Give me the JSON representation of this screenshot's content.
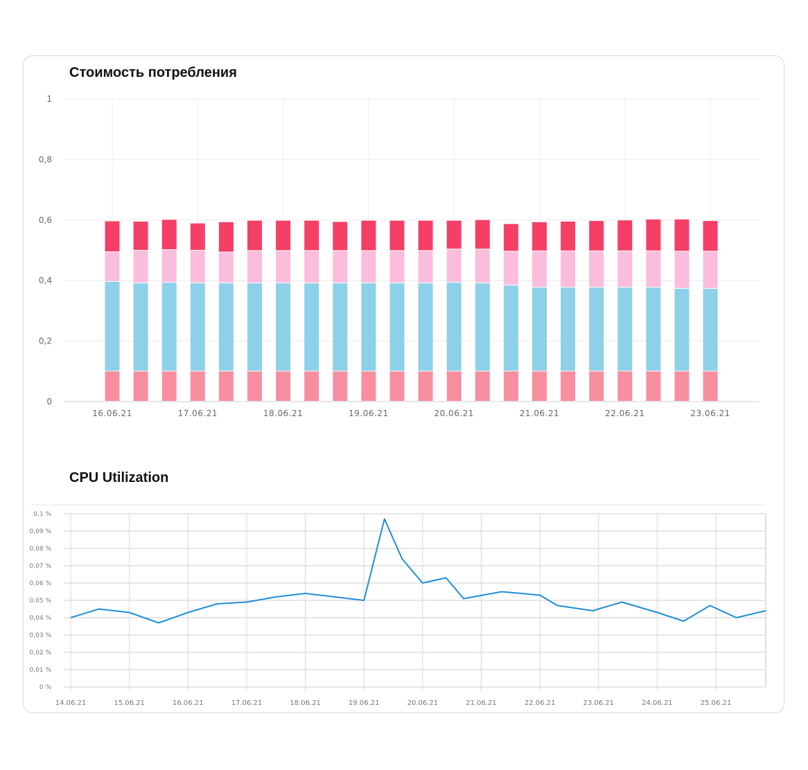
{
  "charts": {
    "cost": {
      "title": "Стоимость потребления"
    },
    "cpu": {
      "title": "CPU Utilization"
    }
  },
  "chart_data": [
    {
      "type": "bar",
      "stacked": true,
      "title": "Стоимость потребления",
      "ylim": [
        0,
        1
      ],
      "y_ticks": [
        "0",
        "0,2",
        "0,4",
        "0,6",
        "0,8",
        "1"
      ],
      "y_tick_values": [
        0,
        0.2,
        0.4,
        0.6,
        0.8,
        1
      ],
      "x_tick_labels": [
        "16.06.21",
        "17.06.21",
        "18.06.21",
        "19.06.21",
        "20.06.21",
        "21.06.21",
        "22.06.21",
        "23.06.21"
      ],
      "x_tick_bar_index": [
        0,
        3,
        6,
        9,
        12,
        15,
        18,
        21
      ],
      "grid": true,
      "colors": [
        "#f78fa0",
        "#8dd0ea",
        "#fbbddc",
        "#f63f66"
      ],
      "series": [
        {
          "values": [
            0.1,
            0.1,
            0.1,
            0.1,
            0.1,
            0.1,
            0.1,
            0.1,
            0.1,
            0.1,
            0.1,
            0.1,
            0.1,
            0.1,
            0.1,
            0.1,
            0.1,
            0.1,
            0.1,
            0.1,
            0.1,
            0.1
          ]
        },
        {
          "values": [
            0.296,
            0.291,
            0.293,
            0.291,
            0.291,
            0.291,
            0.291,
            0.291,
            0.291,
            0.291,
            0.291,
            0.291,
            0.293,
            0.291,
            0.284,
            0.277,
            0.277,
            0.277,
            0.277,
            0.277,
            0.273,
            0.273
          ]
        },
        {
          "values": [
            0.098,
            0.108,
            0.108,
            0.108,
            0.102,
            0.107,
            0.107,
            0.107,
            0.107,
            0.107,
            0.107,
            0.107,
            0.11,
            0.112,
            0.112,
            0.12,
            0.12,
            0.12,
            0.12,
            0.12,
            0.123,
            0.123
          ]
        },
        {
          "values": [
            0.102,
            0.096,
            0.1,
            0.09,
            0.1,
            0.1,
            0.1,
            0.1,
            0.096,
            0.1,
            0.1,
            0.1,
            0.095,
            0.097,
            0.091,
            0.096,
            0.098,
            0.1,
            0.102,
            0.105,
            0.106,
            0.101
          ]
        }
      ]
    },
    {
      "type": "line",
      "title": "CPU Utilization",
      "ylim": [
        0,
        0.1
      ],
      "y_ticks": [
        "0 %",
        "0,01 %",
        "0,02 %",
        "0,03 %",
        "0,04 %",
        "0,05 %",
        "0,06 %",
        "0,07 %",
        "0,08 %",
        "0,09 %",
        "0,1 %"
      ],
      "y_tick_values": [
        0,
        0.01,
        0.02,
        0.03,
        0.04,
        0.05,
        0.06,
        0.07,
        0.08,
        0.09,
        0.1
      ],
      "x_tick_labels": [
        "14.06.21",
        "15.06.21",
        "16.06.21",
        "17.06.21",
        "18.06.21",
        "19.06.21",
        "20.06.21",
        "21.06.21",
        "22.06.21",
        "23.06.21",
        "24.06.21",
        "25.06.21"
      ],
      "x_tick_values": [
        0,
        1,
        2,
        3,
        4,
        5,
        6,
        7,
        8,
        9,
        10,
        11
      ],
      "xlim": [
        0,
        11.85
      ],
      "grid": true,
      "colors": [
        "#1f8dd6"
      ],
      "series": [
        {
          "x": [
            0,
            0.48,
            1,
            1.5,
            2,
            2.5,
            3,
            3.5,
            4,
            4.5,
            5,
            5.35,
            5.65,
            6,
            6.4,
            6.7,
            7.35,
            8,
            8.3,
            8.9,
            9.4,
            10,
            10.45,
            10.9,
            11.35,
            11.85
          ],
          "y": [
            0.04,
            0.045,
            0.043,
            0.037,
            0.043,
            0.048,
            0.049,
            0.052,
            0.054,
            0.052,
            0.05,
            0.097,
            0.074,
            0.06,
            0.063,
            0.051,
            0.055,
            0.053,
            0.047,
            0.044,
            0.049,
            0.043,
            0.038,
            0.047,
            0.04,
            0.044
          ]
        }
      ]
    }
  ]
}
